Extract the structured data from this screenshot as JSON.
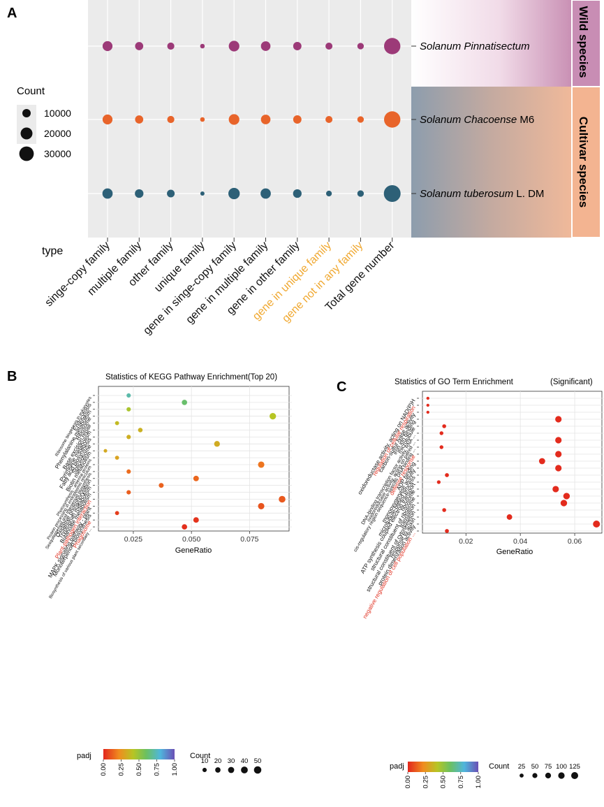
{
  "panelA": {
    "panel_label": "A",
    "legend_title": "Count",
    "legend_sizes": [
      10000,
      20000,
      30000
    ],
    "axis_title": "type",
    "wild_label": "Wild species",
    "cultivar_label": "Cultivar species",
    "highlight_color": "#f0a830",
    "highlight_categories": [
      "gene in unique family",
      "gene not in any family"
    ],
    "series": [
      {
        "name_italic": "Solanum Pinnatisectum",
        "name_suffix": "",
        "color": "#9c3a78",
        "values": [
          14000,
          9500,
          7200,
          3000,
          16000,
          13000,
          9800,
          7000,
          6000,
          38000
        ]
      },
      {
        "name_italic": "Solanum Chacoense",
        "name_suffix": " M6",
        "color": "#e8642a",
        "values": [
          14000,
          9500,
          7200,
          3000,
          16000,
          13000,
          9800,
          7000,
          6000,
          38000
        ]
      },
      {
        "name_italic": "Solanum tuberosum",
        "name_suffix": " L. DM",
        "color": "#2d6077",
        "values": [
          15000,
          10500,
          8500,
          2500,
          18500,
          15000,
          10500,
          4700,
          6000,
          40000
        ]
      }
    ],
    "chart_data": {
      "type": "scatter",
      "categories": [
        "singe-copy family",
        "multiple family",
        "other family",
        "unique family",
        "gene in singe-copy family",
        "gene in multiple family",
        "gene in other family",
        "gene in unique family",
        "gene not in any family",
        "Total gene number"
      ],
      "series_names": [
        "Solanum Pinnatisectum",
        "Solanum Chacoense M6",
        "Solanum tuberosum L. DM"
      ]
    }
  },
  "panelB": {
    "panel_label": "B",
    "title": "Statistics of KEGG Pathway Enrichment(Top 20)",
    "xlabel": "GeneRatio",
    "xlim": [
      0.01,
      0.092
    ],
    "xticks": [
      "0.025",
      "0.050",
      "0.075"
    ],
    "xtick_values": [
      0.025,
      0.05,
      0.075
    ],
    "padj_title": "padj",
    "padj_ticks": [
      "0.00",
      "0.25",
      "0.50",
      "0.75",
      "1.00"
    ],
    "count_title": "Count",
    "count_ticks": [
      10,
      20,
      30,
      40,
      50
    ],
    "red_color": "#e03020",
    "points": [
      {
        "term": "Ribosome biogenesis in eukaryotes",
        "ratio": 0.023,
        "count": 10,
        "padj": 0.72,
        "red": false
      },
      {
        "term": "Endocytosis",
        "ratio": 0.047,
        "count": 20,
        "padj": 0.62,
        "red": false
      },
      {
        "term": "Phenylalanine metabolism",
        "ratio": 0.023,
        "count": 10,
        "padj": 0.45,
        "red": false
      },
      {
        "term": "Ribosome",
        "ratio": 0.085,
        "count": 35,
        "padj": 0.42,
        "red": false
      },
      {
        "term": "Base excision repair",
        "ratio": 0.018,
        "count": 8,
        "padj": 0.38,
        "red": false
      },
      {
        "term": "Pyrimidine metabolism",
        "ratio": 0.028,
        "count": 12,
        "padj": 0.35,
        "red": false
      },
      {
        "term": "Fatty acid biosynthesis",
        "ratio": 0.023,
        "count": 10,
        "padj": 0.34,
        "red": false
      },
      {
        "term": "Spliceosome",
        "ratio": 0.061,
        "count": 25,
        "padj": 0.33,
        "red": false
      },
      {
        "term": "Biotin metabolism",
        "ratio": 0.013,
        "count": 5,
        "padj": 0.32,
        "red": false
      },
      {
        "term": "Photosynthesis - antenna proteins",
        "ratio": 0.018,
        "count": 8,
        "padj": 0.3,
        "red": false
      },
      {
        "term": "Protein processing in endoplasmic reticulum",
        "ratio": 0.08,
        "count": 33,
        "padj": 0.17,
        "red": false
      },
      {
        "term": "Sesquiterpenoid and triterpenoid biosynthesis",
        "ratio": 0.023,
        "count": 10,
        "padj": 0.15,
        "red": false
      },
      {
        "term": "Oxidative phosphorylation",
        "ratio": 0.052,
        "count": 22,
        "padj": 0.14,
        "red": false
      },
      {
        "term": "Tryptophan metabolism",
        "ratio": 0.037,
        "count": 15,
        "padj": 0.13,
        "red": false
      },
      {
        "term": "Butanoate metabolism",
        "ratio": 0.023,
        "count": 10,
        "padj": 0.12,
        "red": false
      },
      {
        "term": "Plant-pathogen interaction",
        "ratio": 0.089,
        "count": 38,
        "padj": 0.11,
        "red": true
      },
      {
        "term": "MAPK signaling pathway - plant",
        "ratio": 0.08,
        "count": 33,
        "padj": 0.1,
        "red": false
      },
      {
        "term": "Monoterpenoid biosynthesis",
        "ratio": 0.018,
        "count": 8,
        "padj": 0.05,
        "red": false
      },
      {
        "term": "Phagosome",
        "ratio": 0.052,
        "count": 22,
        "padj": 0.03,
        "red": true
      },
      {
        "term": "Biosynthesis of various plant secondary ...",
        "ratio": 0.047,
        "count": 20,
        "padj": 0.02,
        "red": false
      }
    ],
    "chart_data": {
      "type": "scatter",
      "title": "Statistics of KEGG Pathway Enrichment(Top 20)",
      "xlabel": "GeneRatio",
      "xlim": [
        0.01,
        0.092
      ]
    }
  },
  "panelC": {
    "panel_label": "C",
    "title": "Statistics of GO Term Enrichment",
    "subtitle": "(Significant)",
    "xlabel": "GeneRatio",
    "xlim": [
      0.004,
      0.07
    ],
    "xticks": [
      "0.02",
      "0.04",
      "0.06"
    ],
    "xtick_values": [
      0.02,
      0.04,
      0.06
    ],
    "padj_title": "padj",
    "padj_ticks": [
      "0.00",
      "0.25",
      "0.50",
      "0.75",
      "1.00"
    ],
    "count_title": "Count",
    "count_ticks": [
      25,
      50,
      75,
      100,
      125
    ],
    "red_color": "#e03020",
    "points": [
      {
        "term": "oxidoreductase activity, acting on NAD(P)H",
        "ratio": 0.006,
        "count": 8,
        "padj": 0.01,
        "red": false
      },
      {
        "term": "regulation of cellular respiration",
        "ratio": 0.006,
        "count": 8,
        "padj": 0.01,
        "red": true
      },
      {
        "term": "carbon-sulfur lyase activity",
        "ratio": 0.006,
        "count": 8,
        "padj": 0.01,
        "red": false
      },
      {
        "term": "iron ion binding",
        "ratio": 0.054,
        "count": 100,
        "padj": 0.01,
        "red": false
      },
      {
        "term": "microtubule",
        "ratio": 0.012,
        "count": 22,
        "padj": 0.01,
        "red": false
      },
      {
        "term": "DNA-binding transcription factor activity, RNA ...",
        "ratio": 0.011,
        "count": 20,
        "padj": 0.01,
        "red": false
      },
      {
        "term": "oxidoreductase activity, acting on paired ...",
        "ratio": 0.054,
        "count": 100,
        "padj": 0.01,
        "red": false
      },
      {
        "term": "cis-regulatory region sequence-specific DNA binding ...",
        "ratio": 0.011,
        "count": 20,
        "padj": 0.01,
        "red": false
      },
      {
        "term": "defense response",
        "ratio": 0.054,
        "count": 100,
        "padj": 0.01,
        "red": true
      },
      {
        "term": "ADP binding",
        "ratio": 0.048,
        "count": 90,
        "padj": 0.01,
        "red": false
      },
      {
        "term": "monooxygenase activity",
        "ratio": 0.054,
        "count": 100,
        "padj": 0.01,
        "red": false
      },
      {
        "term": "microtubule-based process",
        "ratio": 0.013,
        "count": 24,
        "padj": 0.01,
        "red": false
      },
      {
        "term": "ATP synthesis coupled electron transport",
        "ratio": 0.01,
        "count": 18,
        "padj": 0.01,
        "red": false
      },
      {
        "term": "ribosome",
        "ratio": 0.053,
        "count": 98,
        "padj": 0.01,
        "red": false
      },
      {
        "term": "structural constituent of ribosome",
        "ratio": 0.057,
        "count": 105,
        "padj": 0.01,
        "red": false
      },
      {
        "term": "translation",
        "ratio": 0.056,
        "count": 104,
        "padj": 0.01,
        "red": false
      },
      {
        "term": "structural constituent of cytoskeleton",
        "ratio": 0.012,
        "count": 22,
        "padj": 0.01,
        "red": false
      },
      {
        "term": "response to auxin",
        "ratio": 0.036,
        "count": 66,
        "padj": 0.01,
        "red": false
      },
      {
        "term": "protein dimerization activity",
        "ratio": 0.068,
        "count": 125,
        "padj": 0.01,
        "red": false
      },
      {
        "term": "negative regulation of cell population ...",
        "ratio": 0.013,
        "count": 24,
        "padj": 0.01,
        "red": true
      }
    ],
    "chart_data": {
      "type": "scatter",
      "title": "Statistics of GO Term Enrichment",
      "xlabel": "GeneRatio",
      "xlim": [
        0.004,
        0.07
      ]
    }
  }
}
